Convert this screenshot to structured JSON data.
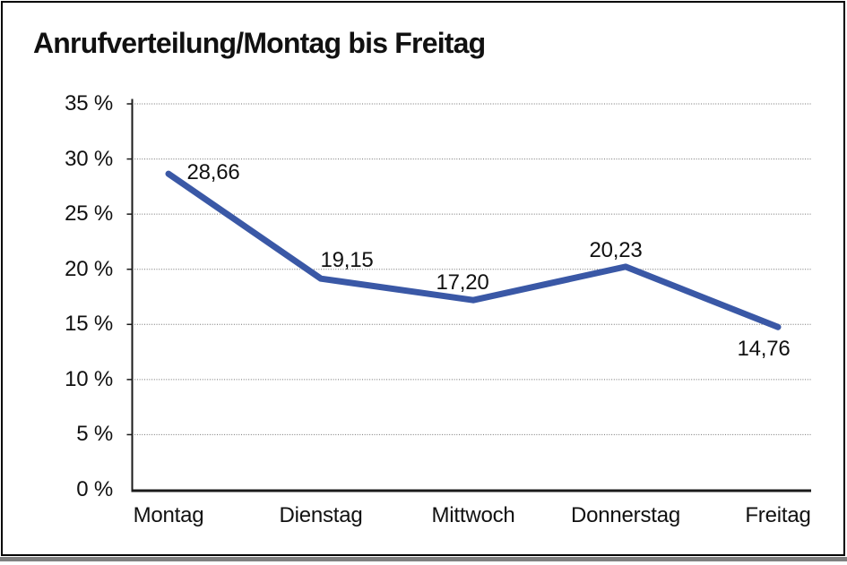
{
  "page": {
    "background": "#ffffff",
    "frame_border_color": "#000000",
    "bottom_bar_color": "#7f7f7f"
  },
  "chart_data": {
    "type": "line",
    "title": "Anrufverteilung/Montag bis Freitag",
    "categories": [
      "Montag",
      "Dienstag",
      "Mittwoch",
      "Donnerstag",
      "Freitag"
    ],
    "values": [
      28.66,
      19.15,
      17.2,
      20.23,
      14.76
    ],
    "value_labels": [
      "28,66",
      "19,15",
      "17,20",
      "20,23",
      "14,76"
    ],
    "xlabel": "",
    "ylabel": "",
    "ylim": [
      0,
      35
    ],
    "ytick_step": 5,
    "ytick_labels": [
      "0 %",
      "5 %",
      "10 %",
      "15 %",
      "20 %",
      "25 %",
      "30 %",
      "35 %"
    ],
    "grid": "horizontal-dotted",
    "legend": "none",
    "line_color": "#3A58A6",
    "axis_color": "#1a1a1a",
    "grid_color": "#707070",
    "text_color": "#111111"
  }
}
